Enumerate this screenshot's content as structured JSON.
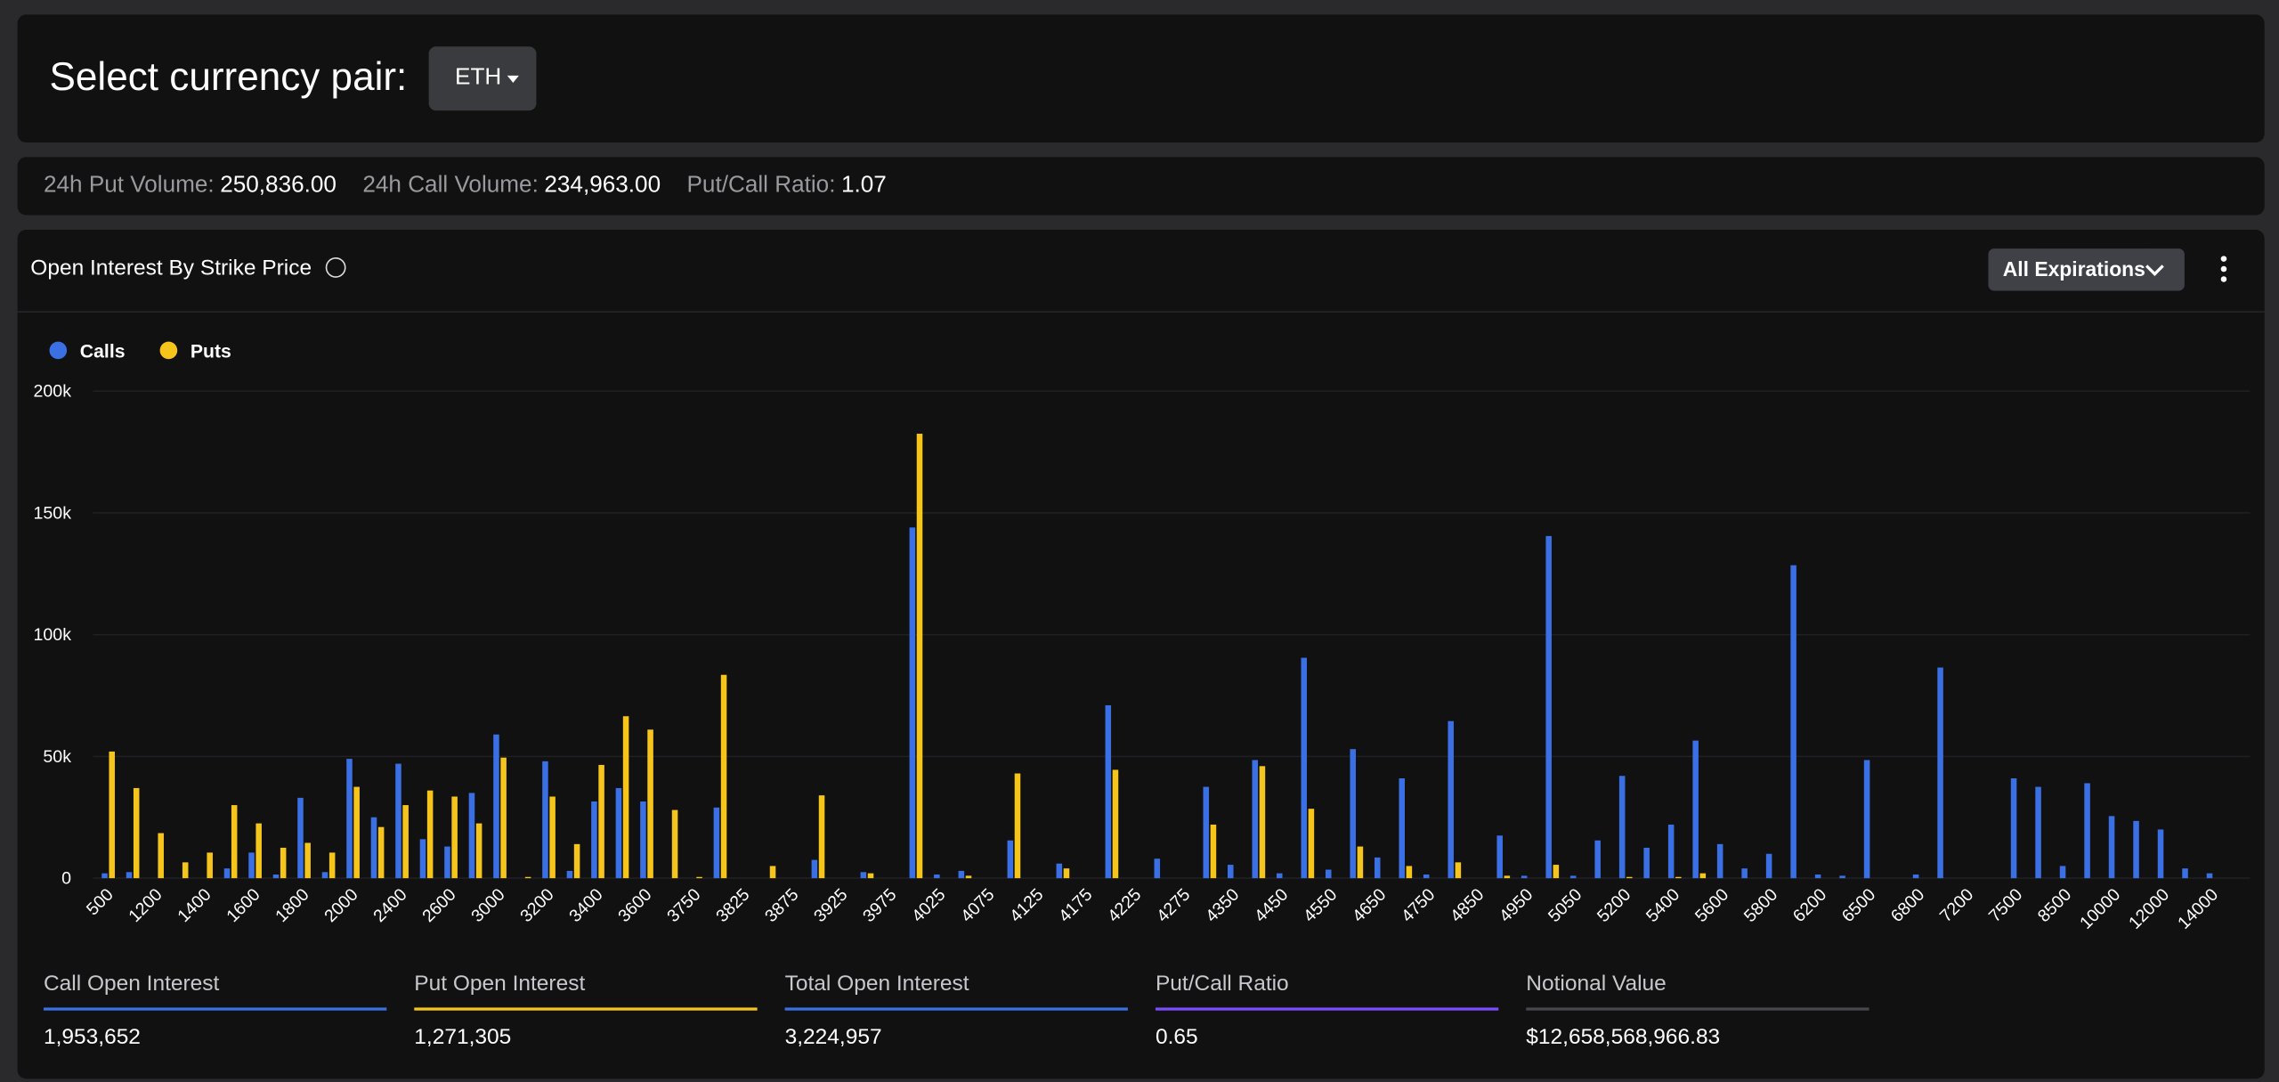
{
  "header": {
    "title": "Select currency pair:",
    "dropdown": "ETH"
  },
  "stats": [
    {
      "label": "24h Put Volume:",
      "value": "250,836.00"
    },
    {
      "label": "24h Call Volume:",
      "value": "234,963.00"
    },
    {
      "label": "Put/Call Ratio:",
      "value": "1.07"
    }
  ],
  "panel": {
    "title": "Open Interest By Strike Price",
    "button": "All Expirations"
  },
  "chart_data": {
    "type": "bar",
    "categories": [
      "500",
      null,
      "1200",
      null,
      "1400",
      null,
      "1600",
      null,
      "1800",
      null,
      "2000",
      null,
      "2400",
      null,
      "2600",
      null,
      "3000",
      null,
      "3200",
      null,
      "3400",
      null,
      "3600",
      null,
      "3750",
      null,
      "3825",
      null,
      "3875",
      null,
      "3925",
      null,
      "3975",
      null,
      "4025",
      null,
      "4075",
      null,
      "4125",
      null,
      "4175",
      null,
      "4225",
      null,
      "4275",
      null,
      "4350",
      null,
      "4450",
      null,
      "4550",
      null,
      "4650",
      null,
      "4750",
      null,
      "4850",
      null,
      "4950",
      null,
      "5050",
      null,
      "5200",
      null,
      "5400",
      null,
      "5600",
      null,
      "5800",
      null,
      "6200",
      null,
      "6500",
      null,
      "6800",
      null,
      "7200",
      null,
      "7500",
      null,
      "8500",
      null,
      "10000",
      null,
      "12000",
      null,
      "14000"
    ],
    "series": [
      {
        "name": "Calls",
        "color": "#3b6fe4",
        "values": [
          2000,
          2500,
          0,
          0,
          0,
          4000,
          10500,
          1500,
          33000,
          2500,
          49000,
          25000,
          47000,
          16000,
          13000,
          35000,
          59000,
          0,
          48000,
          3000,
          31500,
          37000,
          31500,
          0,
          0,
          29000,
          0,
          0,
          0,
          7500,
          0,
          2500,
          0,
          144000,
          1500,
          3000,
          0,
          15500,
          0,
          6000,
          0,
          71000,
          0,
          8000,
          0,
          37500,
          5500,
          48500,
          2000,
          90500,
          3500,
          53000,
          8500,
          41000,
          1500,
          64500,
          0,
          17500,
          1000,
          140500,
          1000,
          15500,
          42000,
          12500,
          22000,
          56500,
          14000,
          4000,
          10000,
          128500,
          1500,
          1000,
          48500,
          0,
          1500,
          86500,
          0,
          0,
          41000,
          37500,
          5000,
          39000,
          25500,
          23500,
          20000,
          4000,
          2000
        ]
      },
      {
        "name": "Puts",
        "color": "#f6c51b",
        "values": [
          52000,
          37000,
          18500,
          6500,
          10500,
          30000,
          22500,
          12500,
          14500,
          10500,
          37500,
          21000,
          30000,
          36000,
          33500,
          22500,
          49500,
          500,
          33500,
          14000,
          46500,
          66500,
          61000,
          28000,
          500,
          83500,
          0,
          5000,
          0,
          34000,
          0,
          2000,
          0,
          182500,
          0,
          1000,
          0,
          43000,
          0,
          4000,
          0,
          44500,
          0,
          0,
          0,
          22000,
          0,
          46000,
          0,
          28500,
          0,
          13000,
          0,
          5000,
          0,
          6500,
          0,
          1000,
          0,
          5500,
          0,
          0,
          500,
          0,
          500,
          2000,
          0,
          0,
          0,
          0,
          0,
          0,
          0,
          0,
          0,
          0,
          0,
          0,
          0,
          0,
          0,
          0,
          0,
          0,
          0,
          0,
          0
        ]
      }
    ],
    "ylim": [
      0,
      200000
    ],
    "yticks": [
      0,
      {
        "value": 50000,
        "label": "50k"
      },
      {
        "value": 100000,
        "label": "100k"
      },
      {
        "value": 150000,
        "label": "150k"
      },
      {
        "value": 200000,
        "label": "200k"
      }
    ],
    "grid": true,
    "legend": "top-left"
  },
  "metrics": [
    {
      "label": "Call Open Interest",
      "value": "1,953,652"
    },
    {
      "label": "Put Open Interest",
      "value": "1,271,305"
    },
    {
      "label": "Total Open Interest",
      "value": "3,224,957"
    },
    {
      "label": "Put/Call Ratio",
      "value": "0.65"
    },
    {
      "label": "Notional Value",
      "value": "$12,658,568,966.83"
    }
  ]
}
